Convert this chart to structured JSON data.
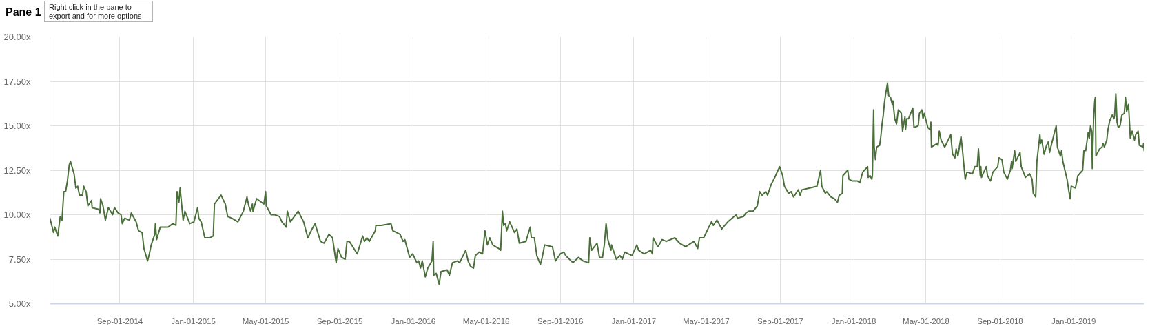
{
  "chart_data": {
    "type": "line",
    "title": "Pane 1",
    "annotations": [
      "Right click in the pane to export and for more options"
    ],
    "xlim": [
      "2014-05-08",
      "2019-04-28"
    ],
    "ylim": [
      5,
      20
    ],
    "xticks": [
      {
        "value": "2014-09-01",
        "label": "Sep-01-2014"
      },
      {
        "value": "2015-01-01",
        "label": "Jan-01-2015"
      },
      {
        "value": "2015-05-01",
        "label": "May-01-2015"
      },
      {
        "value": "2015-09-01",
        "label": "Sep-01-2015"
      },
      {
        "value": "2016-01-01",
        "label": "Jan-01-2016"
      },
      {
        "value": "2016-05-01",
        "label": "May-01-2016"
      },
      {
        "value": "2016-09-01",
        "label": "Sep-01-2016"
      },
      {
        "value": "2017-01-01",
        "label": "Jan-01-2017"
      },
      {
        "value": "2017-05-01",
        "label": "May-01-2017"
      },
      {
        "value": "2017-09-01",
        "label": "Sep-01-2017"
      },
      {
        "value": "2018-01-01",
        "label": "Jan-01-2018"
      },
      {
        "value": "2018-05-01",
        "label": "May-01-2018"
      },
      {
        "value": "2018-09-01",
        "label": "Sep-01-2018"
      },
      {
        "value": "2019-01-01",
        "label": "Jan-01-2019"
      }
    ],
    "yticks": [
      {
        "value": 5,
        "label": "5.00x"
      },
      {
        "value": 7.5,
        "label": "7.50x"
      },
      {
        "value": 10,
        "label": "10.00x"
      },
      {
        "value": 12.5,
        "label": "12.50x"
      },
      {
        "value": 15,
        "label": "15.00x"
      },
      {
        "value": 17.5,
        "label": "17.50x"
      },
      {
        "value": 20,
        "label": "20.00x"
      }
    ],
    "grid": true,
    "line_style": "solid",
    "x": [
      "2014-05-08",
      "2014-05-14",
      "2014-05-16",
      "2014-05-21",
      "2014-05-25",
      "2014-05-28",
      "2014-05-31",
      "2014-06-03",
      "2014-06-06",
      "2014-06-09",
      "2014-06-11",
      "2014-06-17",
      "2014-06-20",
      "2014-06-23",
      "2014-06-26",
      "2014-07-01",
      "2014-07-03",
      "2014-07-07",
      "2014-07-10",
      "2014-07-16",
      "2014-07-17",
      "2014-07-28",
      "2014-07-30",
      "2014-07-31",
      "2014-08-04",
      "2014-08-08",
      "2014-08-13",
      "2014-08-20",
      "2014-08-23",
      "2014-08-29",
      "2014-09-03",
      "2014-09-05",
      "2014-09-09",
      "2014-09-17",
      "2014-09-20",
      "2014-09-28",
      "2014-10-02",
      "2014-10-08",
      "2014-10-11",
      "2014-10-17",
      "2014-10-20",
      "2014-10-23",
      "2014-10-29",
      "2014-10-30",
      "2014-11-01",
      "2014-11-07",
      "2014-11-20",
      "2014-11-28",
      "2014-12-03",
      "2014-12-05",
      "2014-12-08",
      "2014-12-10",
      "2014-12-15",
      "2014-12-18",
      "2014-12-26",
      "2015-01-02",
      "2015-01-08",
      "2015-01-10",
      "2015-01-14",
      "2015-01-20",
      "2015-01-28",
      "2015-02-03",
      "2015-02-05",
      "2015-02-16",
      "2015-02-23",
      "2015-02-27",
      "2015-03-06",
      "2015-03-16",
      "2015-03-25",
      "2015-03-31",
      "2015-04-03",
      "2015-04-06",
      "2015-04-09",
      "2015-04-10",
      "2015-04-16",
      "2015-04-28",
      "2015-05-01",
      "2015-05-02",
      "2015-05-10",
      "2015-05-16",
      "2015-05-24",
      "2015-05-28",
      "2015-06-02",
      "2015-06-04",
      "2015-06-06",
      "2015-06-11",
      "2015-06-24",
      "2015-07-03",
      "2015-07-10",
      "2015-07-17",
      "2015-07-22",
      "2015-07-31",
      "2015-08-06",
      "2015-08-14",
      "2015-08-20",
      "2015-08-26",
      "2015-08-29",
      "2015-09-04",
      "2015-09-10",
      "2015-09-13",
      "2015-09-17",
      "2015-09-30",
      "2015-10-09",
      "2015-10-12",
      "2015-10-16",
      "2015-10-20",
      "2015-10-30",
      "2015-10-31",
      "2015-11-09",
      "2015-11-25",
      "2015-11-28",
      "2015-12-10",
      "2015-12-15",
      "2015-12-18",
      "2015-12-26",
      "2015-12-31",
      "2016-01-07",
      "2016-01-10",
      "2016-01-13",
      "2016-01-16",
      "2016-01-21",
      "2016-01-25",
      "2016-02-01",
      "2016-02-03",
      "2016-02-04",
      "2016-02-08",
      "2016-02-13",
      "2016-02-16",
      "2016-02-26",
      "2016-03-01",
      "2016-03-06",
      "2016-03-14",
      "2016-03-18",
      "2016-03-28",
      "2016-04-01",
      "2016-04-05",
      "2016-04-10",
      "2016-04-13",
      "2016-04-19",
      "2016-04-25",
      "2016-04-29",
      "2016-05-03",
      "2016-05-07",
      "2016-05-12",
      "2016-05-22",
      "2016-05-25",
      "2016-05-28",
      "2016-05-30",
      "2016-06-02",
      "2016-06-04",
      "2016-06-09",
      "2016-06-17",
      "2016-06-21",
      "2016-06-25",
      "2016-07-06",
      "2016-07-13",
      "2016-07-15",
      "2016-07-20",
      "2016-07-24",
      "2016-07-30",
      "2016-08-02",
      "2016-08-06",
      "2016-08-19",
      "2016-08-24",
      "2016-09-01",
      "2016-09-07",
      "2016-09-10",
      "2016-09-16",
      "2016-09-22",
      "2016-10-01",
      "2016-10-09",
      "2016-10-18",
      "2016-10-20",
      "2016-10-23",
      "2016-11-01",
      "2016-11-05",
      "2016-11-10",
      "2016-11-13",
      "2016-11-16",
      "2016-11-19",
      "2016-11-24",
      "2016-11-25",
      "2016-12-03",
      "2016-12-09",
      "2016-12-13",
      "2016-12-17",
      "2016-12-29",
      "2017-01-06",
      "2017-01-09",
      "2017-01-18",
      "2017-01-29",
      "2017-02-01",
      "2017-02-02",
      "2017-02-10",
      "2017-02-17",
      "2017-02-24",
      "2017-03-10",
      "2017-03-18",
      "2017-03-28",
      "2017-04-11",
      "2017-04-17",
      "2017-04-20",
      "2017-04-27",
      "2017-05-04",
      "2017-05-10",
      "2017-05-13",
      "2017-05-19",
      "2017-05-27",
      "2017-06-06",
      "2017-06-20",
      "2017-06-22",
      "2017-07-02",
      "2017-07-06",
      "2017-07-11",
      "2017-07-18",
      "2017-07-25",
      "2017-07-29",
      "2017-08-02",
      "2017-08-08",
      "2017-08-11",
      "2017-08-17",
      "2017-08-23",
      "2017-08-31",
      "2017-09-05",
      "2017-09-08",
      "2017-09-15",
      "2017-09-19",
      "2017-09-23",
      "2017-10-01",
      "2017-10-04",
      "2017-10-07",
      "2017-10-20",
      "2017-11-01",
      "2017-11-07",
      "2017-11-09",
      "2017-11-15",
      "2017-11-17",
      "2017-11-24",
      "2017-11-30",
      "2017-12-05",
      "2017-12-08",
      "2017-12-13",
      "2017-12-14",
      "2017-12-22",
      "2017-12-24",
      "2017-12-29",
      "2018-01-07",
      "2018-01-11",
      "2018-01-16",
      "2018-01-24",
      "2018-01-25",
      "2018-01-28",
      "2018-01-31",
      "2018-02-01",
      "2018-02-03",
      "2018-02-04",
      "2018-02-06",
      "2018-02-08",
      "2018-02-13",
      "2018-02-15",
      "2018-02-17",
      "2018-02-19",
      "2018-02-21",
      "2018-02-23",
      "2018-02-26",
      "2018-02-28",
      "2018-03-03",
      "2018-03-06",
      "2018-03-07",
      "2018-03-10",
      "2018-03-13",
      "2018-03-16",
      "2018-03-21",
      "2018-03-23",
      "2018-03-27",
      "2018-03-28",
      "2018-03-30",
      "2018-04-02",
      "2018-04-09",
      "2018-04-11",
      "2018-04-18",
      "2018-04-20",
      "2018-04-24",
      "2018-04-26",
      "2018-04-28",
      "2018-05-04",
      "2018-05-07",
      "2018-05-09",
      "2018-05-10",
      "2018-05-19",
      "2018-05-21",
      "2018-05-23",
      "2018-05-26",
      "2018-06-01",
      "2018-06-11",
      "2018-06-14",
      "2018-06-18",
      "2018-06-20",
      "2018-06-23",
      "2018-06-28",
      "2018-06-30",
      "2018-07-05",
      "2018-07-08",
      "2018-07-17",
      "2018-07-21",
      "2018-07-25",
      "2018-07-27",
      "2018-07-30",
      "2018-07-31",
      "2018-08-01",
      "2018-08-09",
      "2018-08-11",
      "2018-08-16",
      "2018-08-20",
      "2018-08-28",
      "2018-08-30",
      "2018-09-04",
      "2018-09-07",
      "2018-09-13",
      "2018-09-18",
      "2018-09-20",
      "2018-09-21",
      "2018-09-25",
      "2018-09-27",
      "2018-10-04",
      "2018-10-06",
      "2018-10-13",
      "2018-10-20",
      "2018-10-24",
      "2018-10-26",
      "2018-10-30",
      "2018-11-01",
      "2018-11-06",
      "2018-11-07",
      "2018-11-09",
      "2018-11-13",
      "2018-11-17",
      "2018-11-20",
      "2018-11-22",
      "2018-11-27",
      "2018-12-03",
      "2018-12-05",
      "2018-12-10",
      "2018-12-12",
      "2018-12-14",
      "2018-12-21",
      "2018-12-26",
      "2018-12-28",
      "2019-01-04",
      "2019-01-08",
      "2019-01-16",
      "2019-01-18",
      "2019-01-21",
      "2019-01-25",
      "2019-01-27",
      "2019-01-29",
      "2019-01-31",
      "2019-02-01",
      "2019-02-03",
      "2019-02-05",
      "2019-02-06",
      "2019-02-07",
      "2019-02-13",
      "2019-02-17",
      "2019-02-19",
      "2019-02-21",
      "2019-02-25",
      "2019-02-27",
      "2019-03-02",
      "2019-03-06",
      "2019-03-09",
      "2019-03-10",
      "2019-03-12",
      "2019-03-14",
      "2019-03-16",
      "2019-03-19",
      "2019-03-22",
      "2019-03-26",
      "2019-03-28",
      "2019-03-30",
      "2019-04-02",
      "2019-04-04",
      "2019-04-05",
      "2019-04-08",
      "2019-04-12",
      "2019-04-14",
      "2019-04-18",
      "2019-04-20",
      "2019-04-26",
      "2019-04-27",
      "2019-04-28"
    ],
    "series": [
      {
        "color": "#4b6f3a",
        "values": [
          9.8,
          9.0,
          9.3,
          8.8,
          9.9,
          9.7,
          11.3,
          11.3,
          11.9,
          12.8,
          13.0,
          12.3,
          11.5,
          11.6,
          11.1,
          11.1,
          11.6,
          11.3,
          10.5,
          10.8,
          10.4,
          10.3,
          10.1,
          10.9,
          10.5,
          9.7,
          10.4,
          10.0,
          10.4,
          10.1,
          10.0,
          9.5,
          9.8,
          9.7,
          10.1,
          9.6,
          9.1,
          9.0,
          8.1,
          7.4,
          7.8,
          8.3,
          8.9,
          9.5,
          8.6,
          9.3,
          9.3,
          9.5,
          9.4,
          11.3,
          10.7,
          11.5,
          9.7,
          10.2,
          9.5,
          9.6,
          10.4,
          9.8,
          9.6,
          8.7,
          8.7,
          8.8,
          10.6,
          11.1,
          10.6,
          9.9,
          9.8,
          9.6,
          10.2,
          11.0,
          10.5,
          10.2,
          10.6,
          10.2,
          10.9,
          10.6,
          11.3,
          10.5,
          10.0,
          10.0,
          9.9,
          9.6,
          9.4,
          9.3,
          10.2,
          9.6,
          10.2,
          9.6,
          8.7,
          9.2,
          9.5,
          8.5,
          8.4,
          8.9,
          8.7,
          7.3,
          8.1,
          7.6,
          7.5,
          8.5,
          8.5,
          7.8,
          8.8,
          8.5,
          8.7,
          8.5,
          9.1,
          9.4,
          9.4,
          9.5,
          9.1,
          8.9,
          8.5,
          8.6,
          7.6,
          7.8,
          7.3,
          7.4,
          7.0,
          7.4,
          6.5,
          7.0,
          7.4,
          8.5,
          6.6,
          6.7,
          6.1,
          6.8,
          6.9,
          6.6,
          7.3,
          7.4,
          7.3,
          8.0,
          7.4,
          7.1,
          7.0,
          7.7,
          7.9,
          7.8,
          9.1,
          8.3,
          8.7,
          8.3,
          8.1,
          8.0,
          10.2,
          9.4,
          9.5,
          9.1,
          9.6,
          9.0,
          9.2,
          8.4,
          8.5,
          9.3,
          8.7,
          8.7,
          7.7,
          7.2,
          7.6,
          8.3,
          8.2,
          7.4,
          7.8,
          7.9,
          7.7,
          7.5,
          7.3,
          7.6,
          7.4,
          7.3,
          8.7,
          8.0,
          8.4,
          7.6,
          7.6,
          8.3,
          9.5,
          8.6,
          8.0,
          8.3,
          7.5,
          7.7,
          7.5,
          7.9,
          7.7,
          8.3,
          8.0,
          7.8,
          8.0,
          7.8,
          8.7,
          8.2,
          8.6,
          8.5,
          8.7,
          8.4,
          8.2,
          8.5,
          8.1,
          8.7,
          8.7,
          9.2,
          9.6,
          9.4,
          9.7,
          9.2,
          9.6,
          10.0,
          9.8,
          9.9,
          10.1,
          10.2,
          10.2,
          10.5,
          11.3,
          11.1,
          11.3,
          11.1,
          11.7,
          12.1,
          12.7,
          12.2,
          11.6,
          11.2,
          11.3,
          11.0,
          11.4,
          11.1,
          11.4,
          11.5,
          11.6,
          12.5,
          11.6,
          11.2,
          11.3,
          11.0,
          10.9,
          10.7,
          11.1,
          11.2,
          12.2,
          12.5,
          12.0,
          11.9,
          11.9,
          11.8,
          12.4,
          12.7,
          12.1,
          12.2,
          12.0,
          12.2,
          15.9,
          13.8,
          13.1,
          13.8,
          13.9,
          14.4,
          15.1,
          15.6,
          16.3,
          16.8,
          17.4,
          16.7,
          16.6,
          16.2,
          16.4,
          15.4,
          15.1,
          15.9,
          15.7,
          14.7,
          15.5,
          14.8,
          15.4,
          15.4,
          16.0,
          14.9,
          15.0,
          15.7,
          15.9,
          15.4,
          15.7,
          14.9,
          14.8,
          15.2,
          13.8,
          14.0,
          13.9,
          14.7,
          14.2,
          13.8,
          14.5,
          13.4,
          13.2,
          13.7,
          13.3,
          14.4,
          13.8,
          12.0,
          12.4,
          12.3,
          12.7,
          12.7,
          13.7,
          12.2,
          12.7,
          12.1,
          12.7,
          12.2,
          11.9,
          12.4,
          12.7,
          13.2,
          13.1,
          12.4,
          12.0,
          12.5,
          13.0,
          12.6,
          13.6,
          13.0,
          13.5,
          12.7,
          12.1,
          12.3,
          12.0,
          11.2,
          11.0,
          13.0,
          14.5,
          14.0,
          14.2,
          13.4,
          13.9,
          14.1,
          13.5,
          14.2,
          15.0,
          13.8,
          13.3,
          13.6,
          13.0,
          12.0,
          10.9,
          11.6,
          11.5,
          12.2,
          12.5,
          13.6,
          13.6,
          14.6,
          14.3,
          15.0,
          14.7,
          12.6,
          15.3,
          16.4,
          16.6,
          13.3,
          13.7,
          13.8,
          14.0,
          13.8,
          14.2,
          14.8,
          15.3,
          15.6,
          15.4,
          15.6,
          16.8,
          15.2,
          14.9,
          15.0,
          15.6,
          15.7,
          16.6,
          15.8,
          16.2,
          15.0,
          14.3,
          14.7,
          14.2,
          14.5,
          14.7,
          13.9,
          13.8,
          14.0,
          13.6
        ]
      }
    ]
  }
}
